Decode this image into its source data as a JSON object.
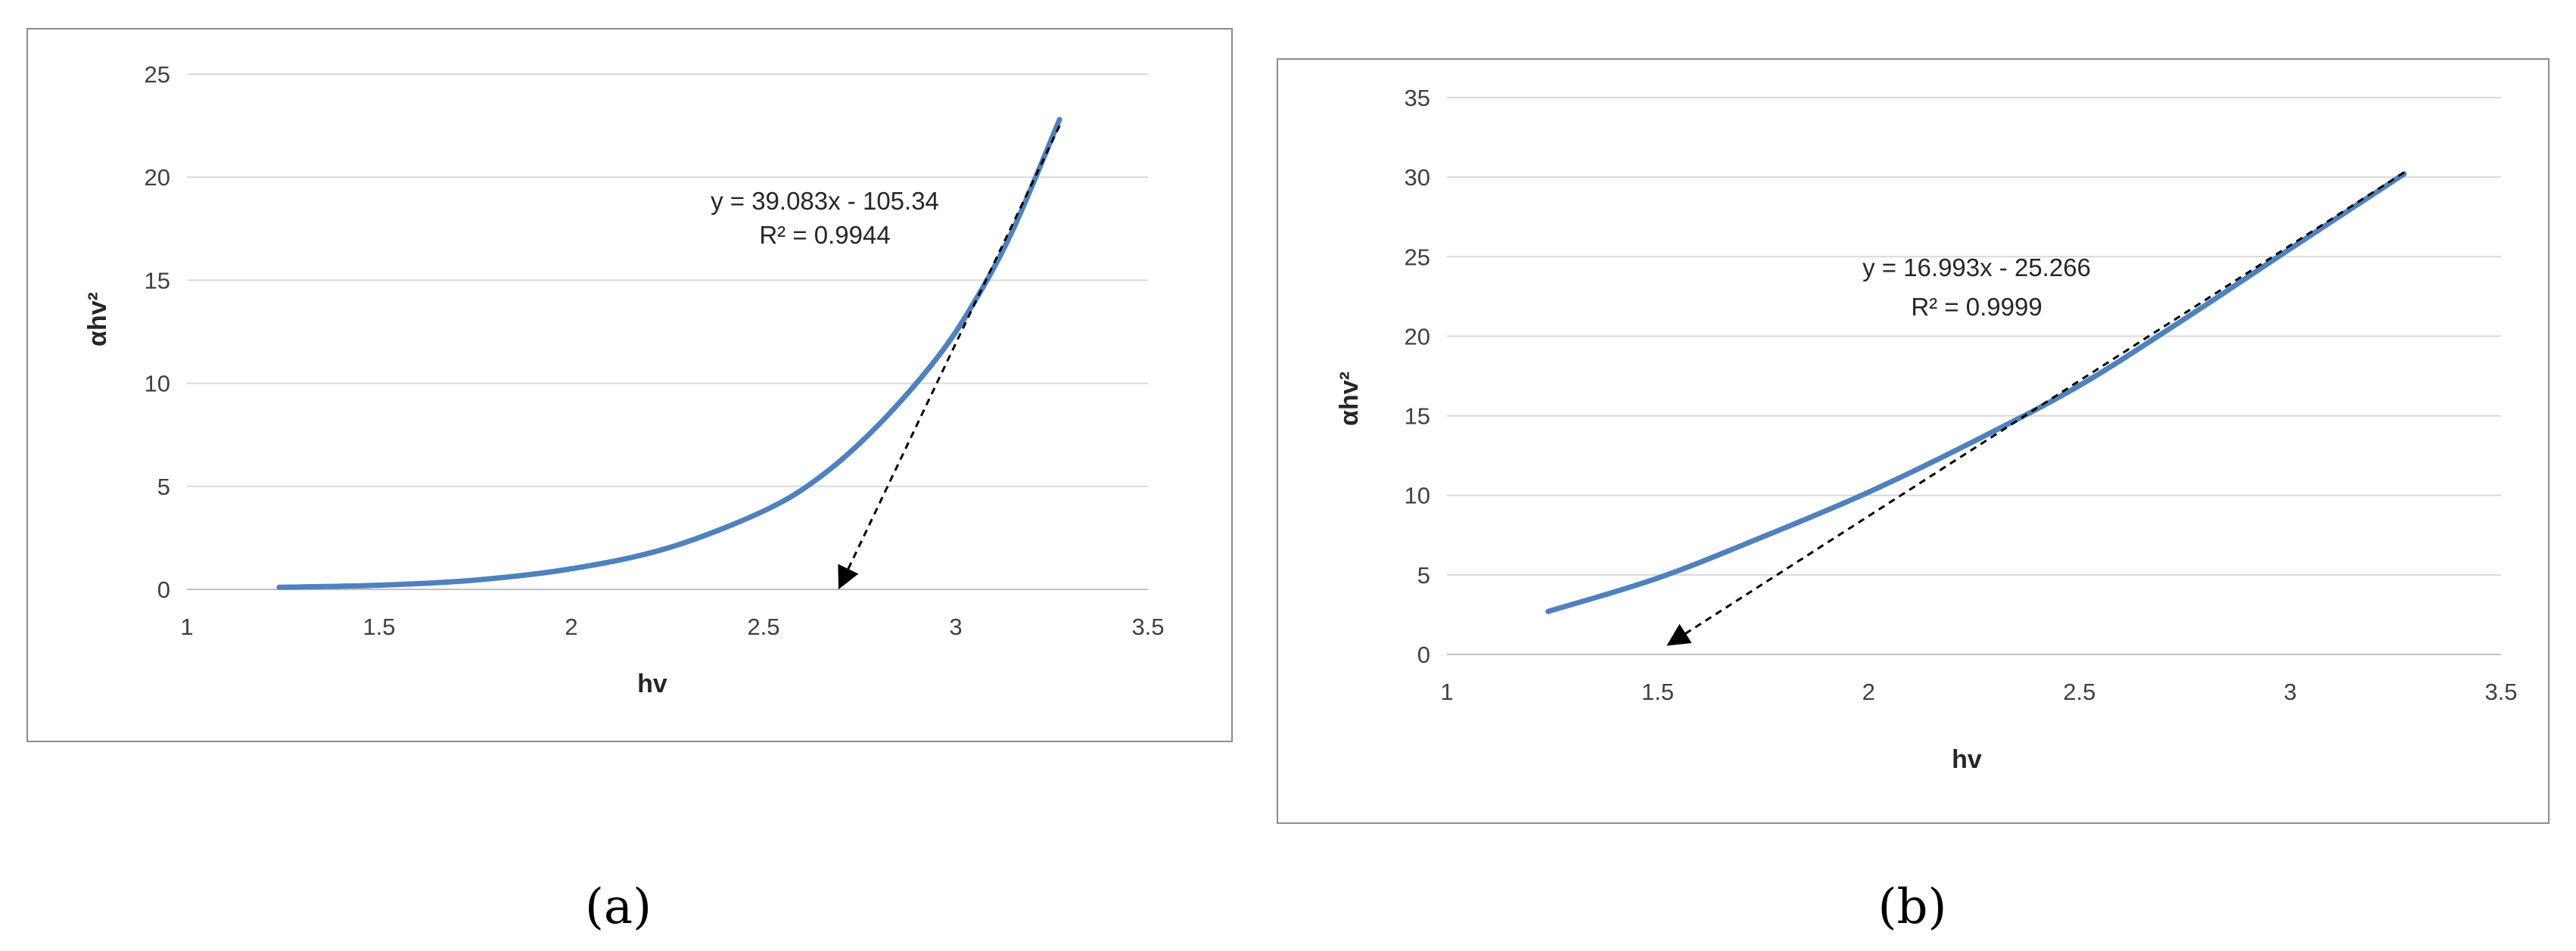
{
  "colors": {
    "series": "#4F81BD",
    "trendline": "#000000",
    "grid": "#D9D9D9",
    "frame": "#8C8C8C"
  },
  "chart_data": [
    {
      "type": "line",
      "panel_label": "(a)",
      "xlabel": "hv",
      "ylabel": "αhv²",
      "xlim": [
        1,
        3.5
      ],
      "ylim": [
        0,
        25
      ],
      "x_ticks": [
        "1",
        "1.5",
        "2",
        "2.5",
        "3",
        "3.5"
      ],
      "y_ticks": [
        "0",
        "5",
        "10",
        "15",
        "20",
        "25"
      ],
      "grid": "horizontal",
      "series": [
        {
          "x": [
            1.24,
            1.5,
            1.75,
            2.0,
            2.25,
            2.5,
            2.65,
            2.8,
            2.95,
            3.05,
            3.15,
            3.27
          ],
          "y": [
            0.1,
            0.2,
            0.45,
            1.0,
            2.0,
            3.8,
            5.5,
            8.0,
            11.2,
            14.0,
            17.5,
            22.8
          ]
        }
      ],
      "trendline": {
        "equation": "y = 39.083x - 105.34",
        "r2": "R² = 0.9944",
        "x": [
          3.27,
          2.7
        ],
        "y": [
          22.5,
          0.2
        ]
      }
    },
    {
      "type": "line",
      "panel_label": "(b)",
      "xlabel": "hv",
      "ylabel": "αhv²",
      "xlim": [
        1,
        3.5
      ],
      "ylim": [
        0,
        35
      ],
      "x_ticks": [
        "1",
        "1.5",
        "2",
        "2.5",
        "3",
        "3.5"
      ],
      "y_ticks": [
        "0",
        "5",
        "10",
        "15",
        "20",
        "25",
        "30",
        "35"
      ],
      "grid": "horizontal",
      "series": [
        {
          "x": [
            1.24,
            1.5,
            1.75,
            2.0,
            2.25,
            2.5,
            2.75,
            3.0,
            3.27
          ],
          "y": [
            2.7,
            4.8,
            7.4,
            10.2,
            13.4,
            16.9,
            21.1,
            25.5,
            30.2
          ]
        }
      ],
      "trendline": {
        "equation": "y = 16.993x - 25.266",
        "r2": "R² = 0.9999",
        "x": [
          3.27,
          1.53
        ],
        "y": [
          30.3,
          0.7
        ]
      }
    }
  ]
}
